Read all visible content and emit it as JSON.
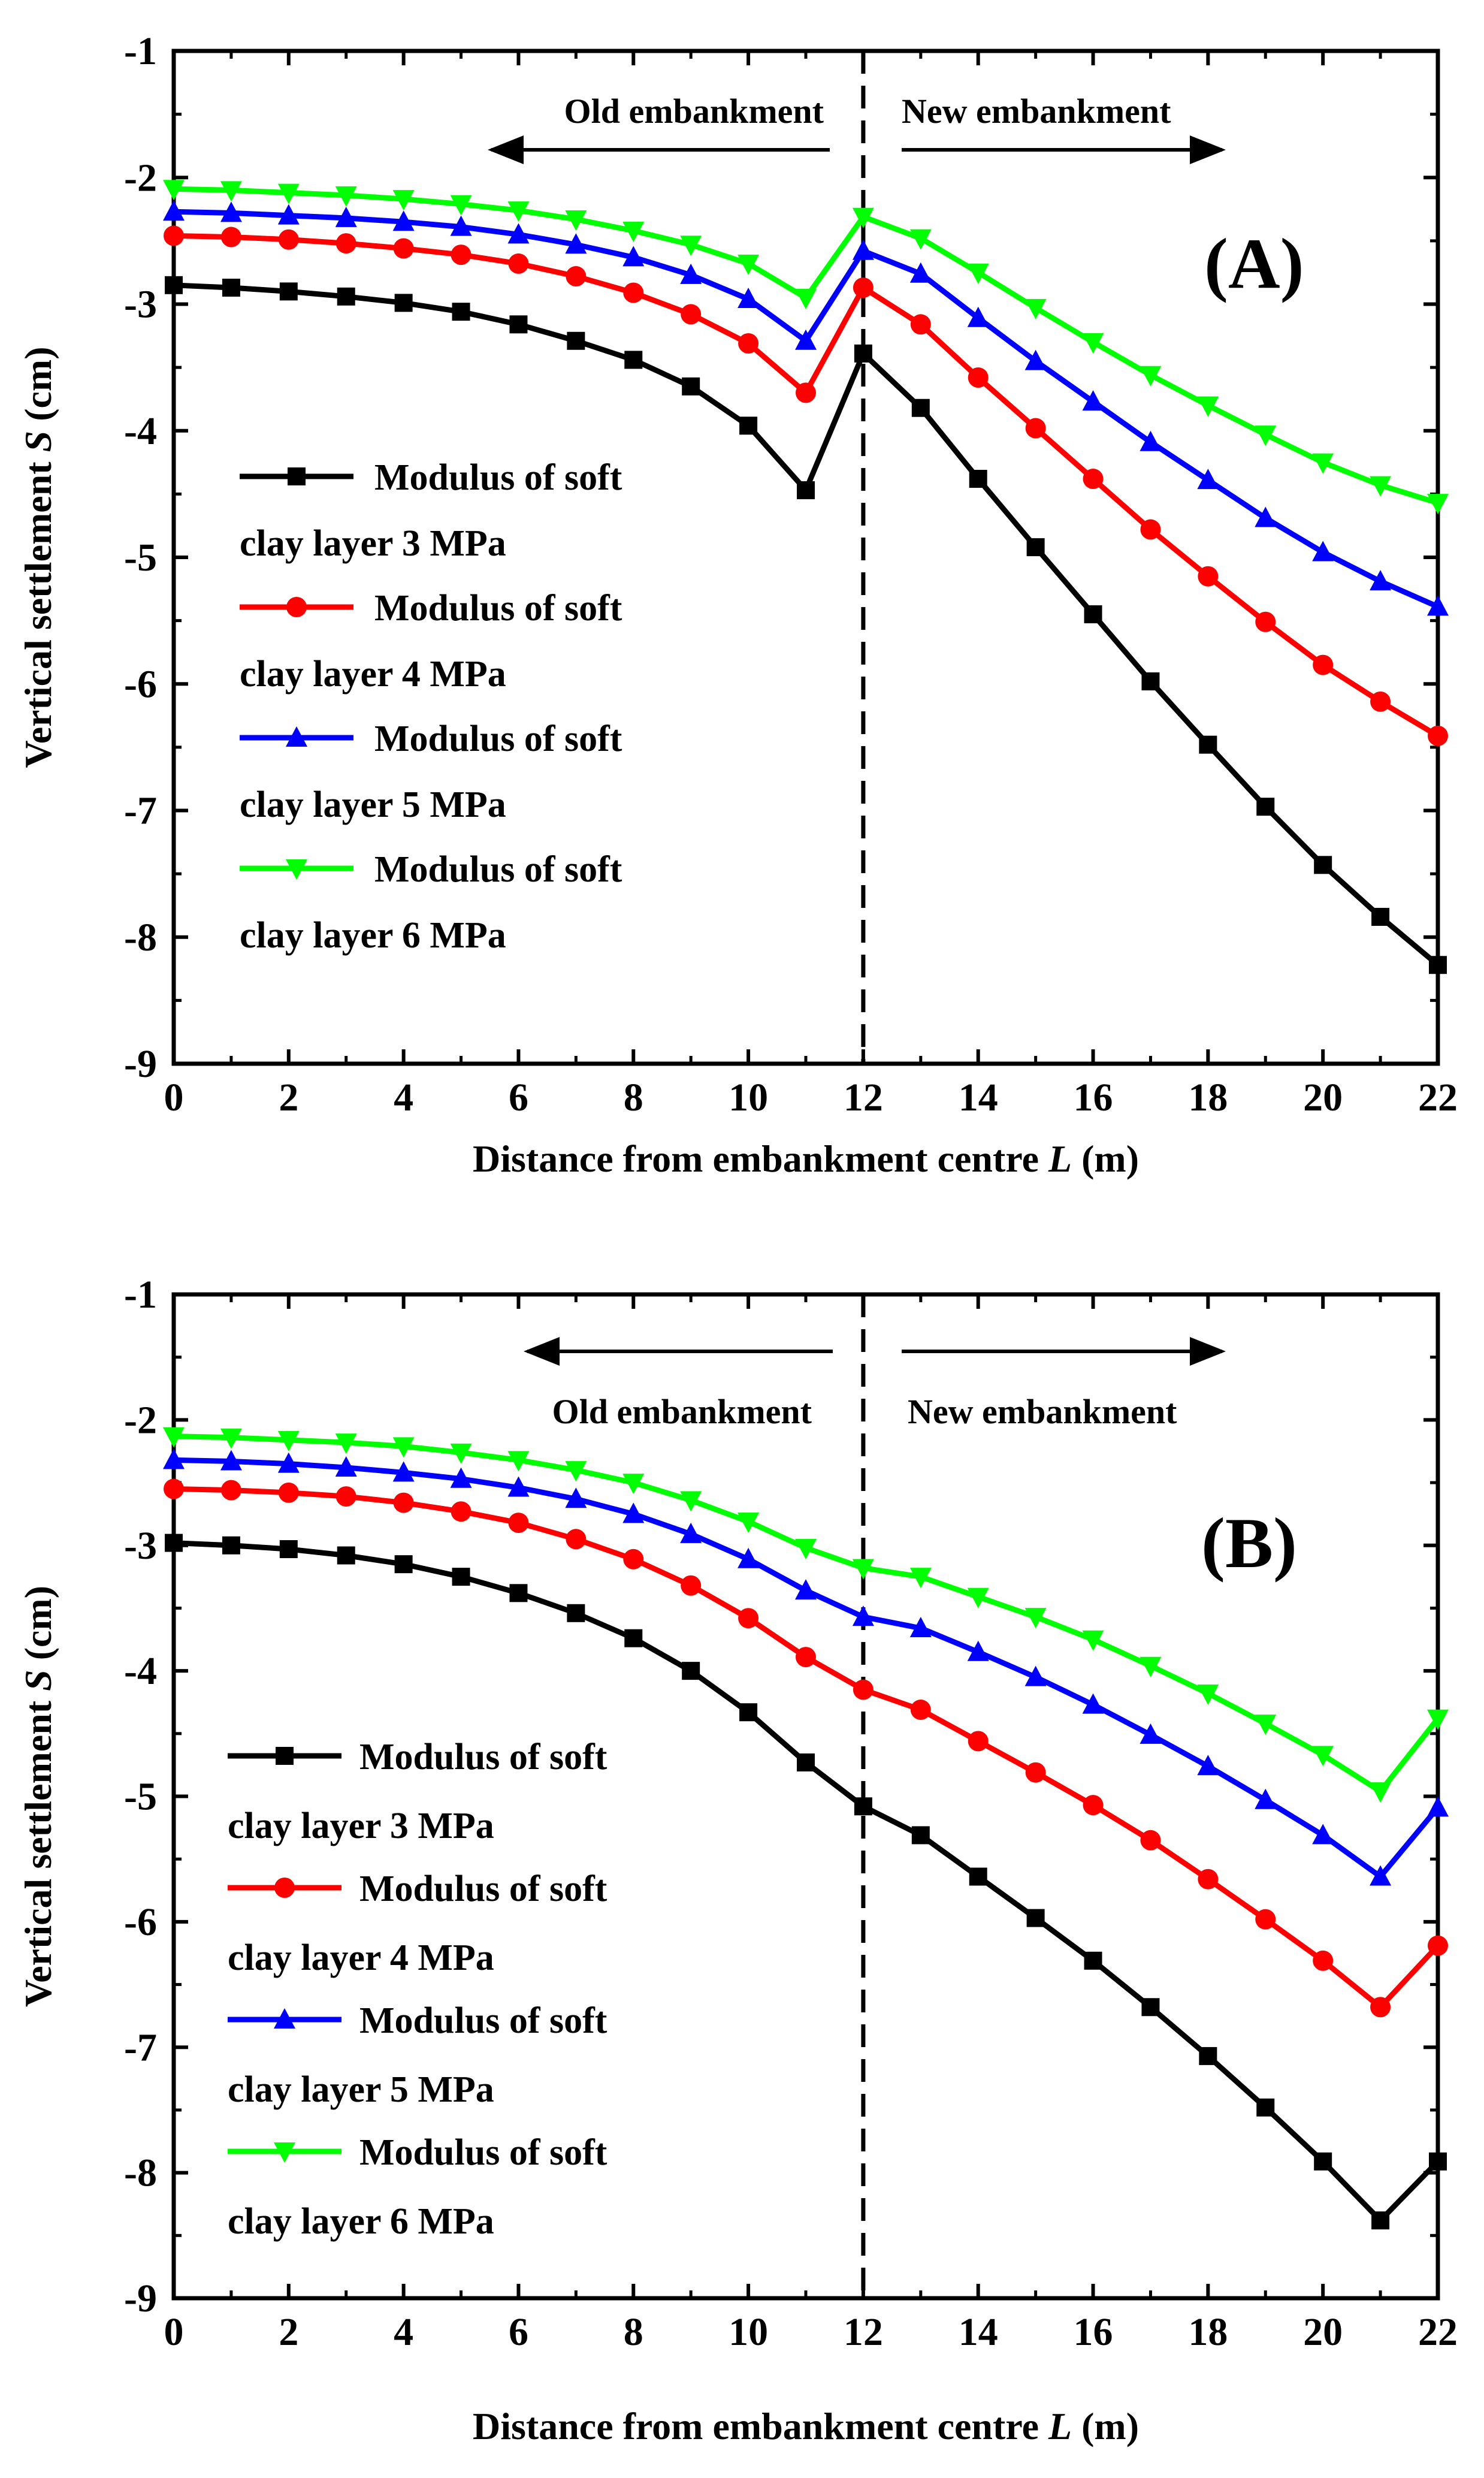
{
  "chart_data": [
    {
      "type": "line",
      "panel_label": "(A)",
      "xlabel_prefix": "Distance from embankment centre ",
      "xlabel_var": "L",
      "xlabel_unit": " (m)",
      "ylabel_prefix": "Vertical settlement  ",
      "ylabel_var": "S",
      "ylabel_unit": " (cm)",
      "xlim": [
        0,
        22
      ],
      "ylim": [
        -9,
        -1
      ],
      "xticks": [
        0,
        2,
        4,
        6,
        8,
        10,
        12,
        14,
        16,
        18,
        20,
        22
      ],
      "yticks": [
        -1,
        -2,
        -3,
        -4,
        -5,
        -6,
        -7,
        -8,
        -9
      ],
      "divider_x": 12,
      "old_label": "Old embankment",
      "new_label": "New embankment",
      "x": [
        0,
        1,
        2,
        3,
        4,
        5,
        6,
        7,
        8,
        9,
        10,
        11,
        12,
        13,
        14,
        15,
        16,
        17,
        18,
        19,
        20,
        21,
        22
      ],
      "series": [
        {
          "name_line1": "Modulus of soft",
          "name_line2": "clay layer 3 MPa",
          "color": "#000000",
          "marker": "square",
          "values": [
            -2.85,
            -2.87,
            -2.9,
            -2.94,
            -2.99,
            -3.06,
            -3.16,
            -3.29,
            -3.44,
            -3.65,
            -3.96,
            -4.47,
            -3.39,
            -3.82,
            -4.38,
            -4.92,
            -5.45,
            -5.98,
            -6.48,
            -6.97,
            -7.43,
            -7.84,
            -8.22
          ]
        },
        {
          "name_line1": "Modulus of soft",
          "name_line2": "clay layer 4 MPa",
          "color": "#ff0000",
          "marker": "circle",
          "values": [
            -2.46,
            -2.47,
            -2.49,
            -2.52,
            -2.56,
            -2.61,
            -2.68,
            -2.78,
            -2.91,
            -3.08,
            -3.31,
            -3.7,
            -2.87,
            -3.16,
            -3.58,
            -3.98,
            -4.38,
            -4.78,
            -5.15,
            -5.51,
            -5.85,
            -6.14,
            -6.41
          ]
        },
        {
          "name_line1": "Modulus of soft",
          "name_line2": "clay layer 5 MPa",
          "color": "#0000ff",
          "marker": "triangle-up",
          "values": [
            -2.27,
            -2.28,
            -2.3,
            -2.32,
            -2.35,
            -2.39,
            -2.45,
            -2.53,
            -2.63,
            -2.77,
            -2.96,
            -3.29,
            -2.58,
            -2.76,
            -3.11,
            -3.45,
            -3.77,
            -4.09,
            -4.39,
            -4.69,
            -4.96,
            -5.19,
            -5.39
          ]
        },
        {
          "name_line1": "Modulus of soft",
          "name_line2": "clay layer 6 MPa",
          "color": "#00ff00",
          "marker": "triangle-down",
          "values": [
            -2.09,
            -2.1,
            -2.12,
            -2.14,
            -2.17,
            -2.21,
            -2.26,
            -2.33,
            -2.42,
            -2.53,
            -2.68,
            -2.95,
            -2.31,
            -2.48,
            -2.75,
            -3.03,
            -3.3,
            -3.56,
            -3.8,
            -4.03,
            -4.25,
            -4.43,
            -4.57
          ]
        }
      ]
    },
    {
      "type": "line",
      "panel_label": "(B)",
      "xlabel_prefix": "Distance from embankment centre ",
      "xlabel_var": "L",
      "xlabel_unit": " (m)",
      "ylabel_prefix": "Vertical settlement  ",
      "ylabel_var": "S",
      "ylabel_unit": " (cm)",
      "xlim": [
        0,
        22
      ],
      "ylim": [
        -9,
        -1
      ],
      "xticks": [
        0,
        2,
        4,
        6,
        8,
        10,
        12,
        14,
        16,
        18,
        20,
        22
      ],
      "yticks": [
        -1,
        -2,
        -3,
        -4,
        -5,
        -6,
        -7,
        -8,
        -9
      ],
      "divider_x": 12,
      "old_label": "Old embankment",
      "new_label": "New embankment",
      "x": [
        0,
        1,
        2,
        3,
        4,
        5,
        6,
        7,
        8,
        9,
        10,
        11,
        12,
        13,
        14,
        15,
        16,
        17,
        18,
        19,
        20,
        21,
        22
      ],
      "series": [
        {
          "name_line1": "Modulus of soft",
          "name_line2": "clay layer 3 MPa",
          "color": "#000000",
          "marker": "square",
          "values": [
            -2.98,
            -3.0,
            -3.03,
            -3.08,
            -3.15,
            -3.25,
            -3.38,
            -3.54,
            -3.74,
            -4.0,
            -4.33,
            -4.73,
            -5.08,
            -5.31,
            -5.64,
            -5.97,
            -6.31,
            -6.68,
            -7.07,
            -7.48,
            -7.91,
            -8.38,
            -7.91
          ]
        },
        {
          "name_line1": "Modulus of soft",
          "name_line2": "clay layer 4 MPa",
          "color": "#ff0000",
          "marker": "circle",
          "values": [
            -2.55,
            -2.56,
            -2.58,
            -2.61,
            -2.66,
            -2.73,
            -2.82,
            -2.95,
            -3.11,
            -3.32,
            -3.58,
            -3.89,
            -4.15,
            -4.31,
            -4.56,
            -4.81,
            -5.07,
            -5.35,
            -5.66,
            -5.98,
            -6.31,
            -6.68,
            -6.19
          ]
        },
        {
          "name_line1": "Modulus of soft",
          "name_line2": "clay layer 5 MPa",
          "color": "#0000ff",
          "marker": "triangle-up",
          "values": [
            -2.32,
            -2.33,
            -2.35,
            -2.38,
            -2.42,
            -2.47,
            -2.54,
            -2.63,
            -2.75,
            -2.91,
            -3.11,
            -3.36,
            -3.57,
            -3.66,
            -3.85,
            -4.05,
            -4.27,
            -4.51,
            -4.76,
            -5.03,
            -5.31,
            -5.64,
            -5.09
          ]
        },
        {
          "name_line1": "Modulus of soft",
          "name_line2": "clay layer 6 MPa",
          "color": "#00ff00",
          "marker": "triangle-down",
          "values": [
            -2.13,
            -2.14,
            -2.16,
            -2.18,
            -2.21,
            -2.26,
            -2.32,
            -2.4,
            -2.5,
            -2.64,
            -2.81,
            -3.02,
            -3.18,
            -3.25,
            -3.41,
            -3.57,
            -3.75,
            -3.96,
            -4.18,
            -4.42,
            -4.67,
            -4.96,
            -4.38
          ]
        }
      ]
    }
  ]
}
